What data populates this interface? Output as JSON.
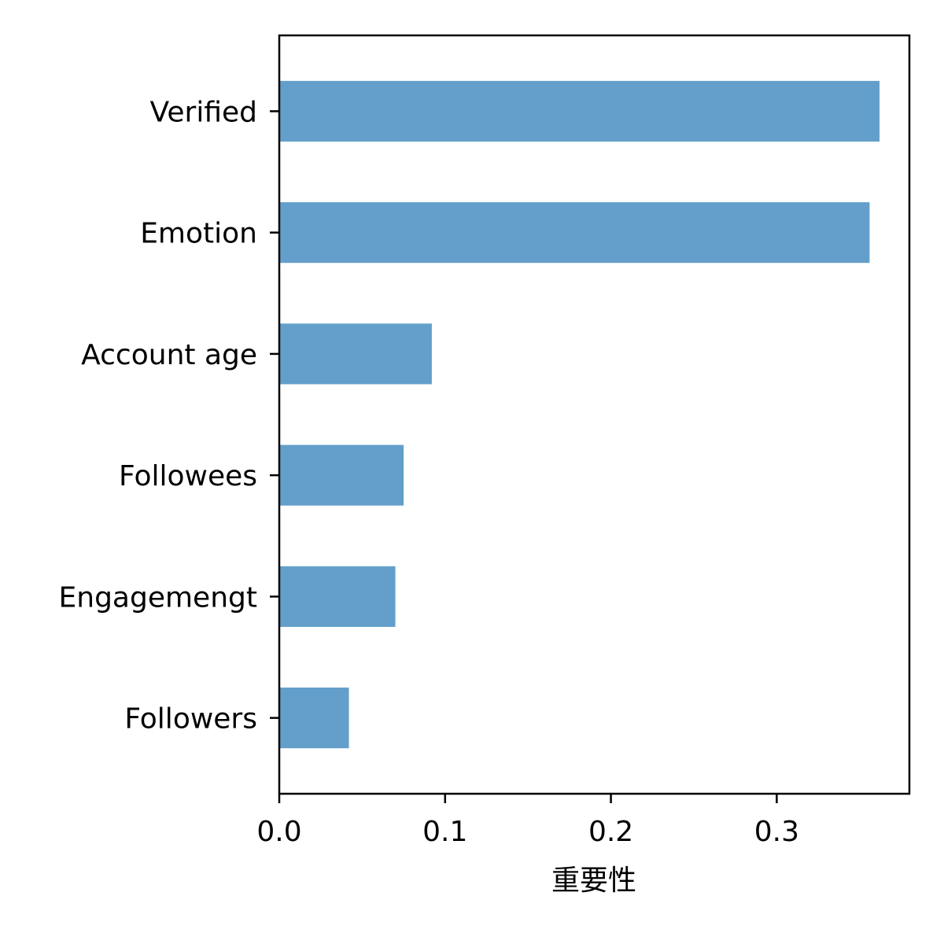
{
  "chart_data": {
    "type": "bar",
    "orientation": "horizontal",
    "categories": [
      "Verified",
      "Emotion",
      "Account age",
      "Followees",
      "Engagemengt",
      "Followers"
    ],
    "values": [
      0.362,
      0.356,
      0.092,
      0.075,
      0.07,
      0.042
    ],
    "title": "",
    "xlabel": "重要性",
    "ylabel": "",
    "xlim": [
      0,
      0.38
    ],
    "xticks": [
      "0.0",
      "0.1",
      "0.2",
      "0.3"
    ],
    "grid": false,
    "legend": false,
    "bar_color": "#639fca"
  }
}
